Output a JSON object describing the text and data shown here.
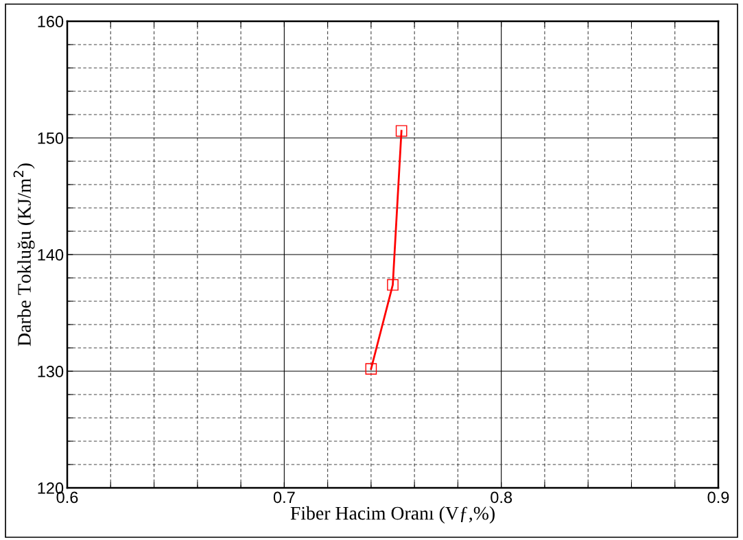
{
  "chart_data": {
    "type": "line",
    "xlabel": "Fiber Hacim Oranı (Vƒ,%)",
    "ylabel": "Darbe Tokluğu (KJ/m$^{2}$)",
    "x": [
      0.74,
      0.75,
      0.754
    ],
    "series": [
      {
        "color": "#ff0000",
        "values": [
          130.2,
          137.4,
          150.6
        ]
      }
    ],
    "marker": "square",
    "line_style": "solid",
    "grid": true,
    "legend": false,
    "xlim": [
      0.6,
      0.9
    ],
    "ylim": [
      120,
      160
    ],
    "xticks": [
      0.6,
      {
        "value": 0.62,
        "label": null
      },
      {
        "value": 0.64,
        "label": null
      },
      {
        "value": 0.66,
        "label": null
      },
      {
        "value": 0.68,
        "label": null
      },
      0.7,
      {
        "value": 0.72,
        "label": null
      },
      {
        "value": 0.74,
        "label": null
      },
      {
        "value": 0.76,
        "label": null
      },
      {
        "value": 0.78,
        "label": null
      },
      0.8,
      {
        "value": 0.82,
        "label": null
      },
      {
        "value": 0.84,
        "label": null
      },
      {
        "value": 0.86,
        "label": null
      },
      {
        "value": 0.88,
        "label": null
      },
      0.9
    ],
    "yticks": [
      120,
      {
        "value": 122,
        "label": null
      },
      {
        "value": 124,
        "label": null
      },
      {
        "value": 126,
        "label": null
      },
      {
        "value": 128,
        "label": null
      },
      130,
      {
        "value": 132,
        "label": null
      },
      {
        "value": 134,
        "label": null
      },
      {
        "value": 136,
        "label": null
      },
      {
        "value": 138,
        "label": null
      },
      140,
      {
        "value": 142,
        "label": null
      },
      {
        "value": 144,
        "label": null
      },
      {
        "value": 146,
        "label": null
      },
      {
        "value": 148,
        "label": null
      },
      150,
      {
        "value": 152,
        "label": null
      },
      {
        "value": 154,
        "label": null
      },
      {
        "value": 156,
        "label": null
      },
      {
        "value": 158,
        "label": null
      },
      160
    ]
  }
}
